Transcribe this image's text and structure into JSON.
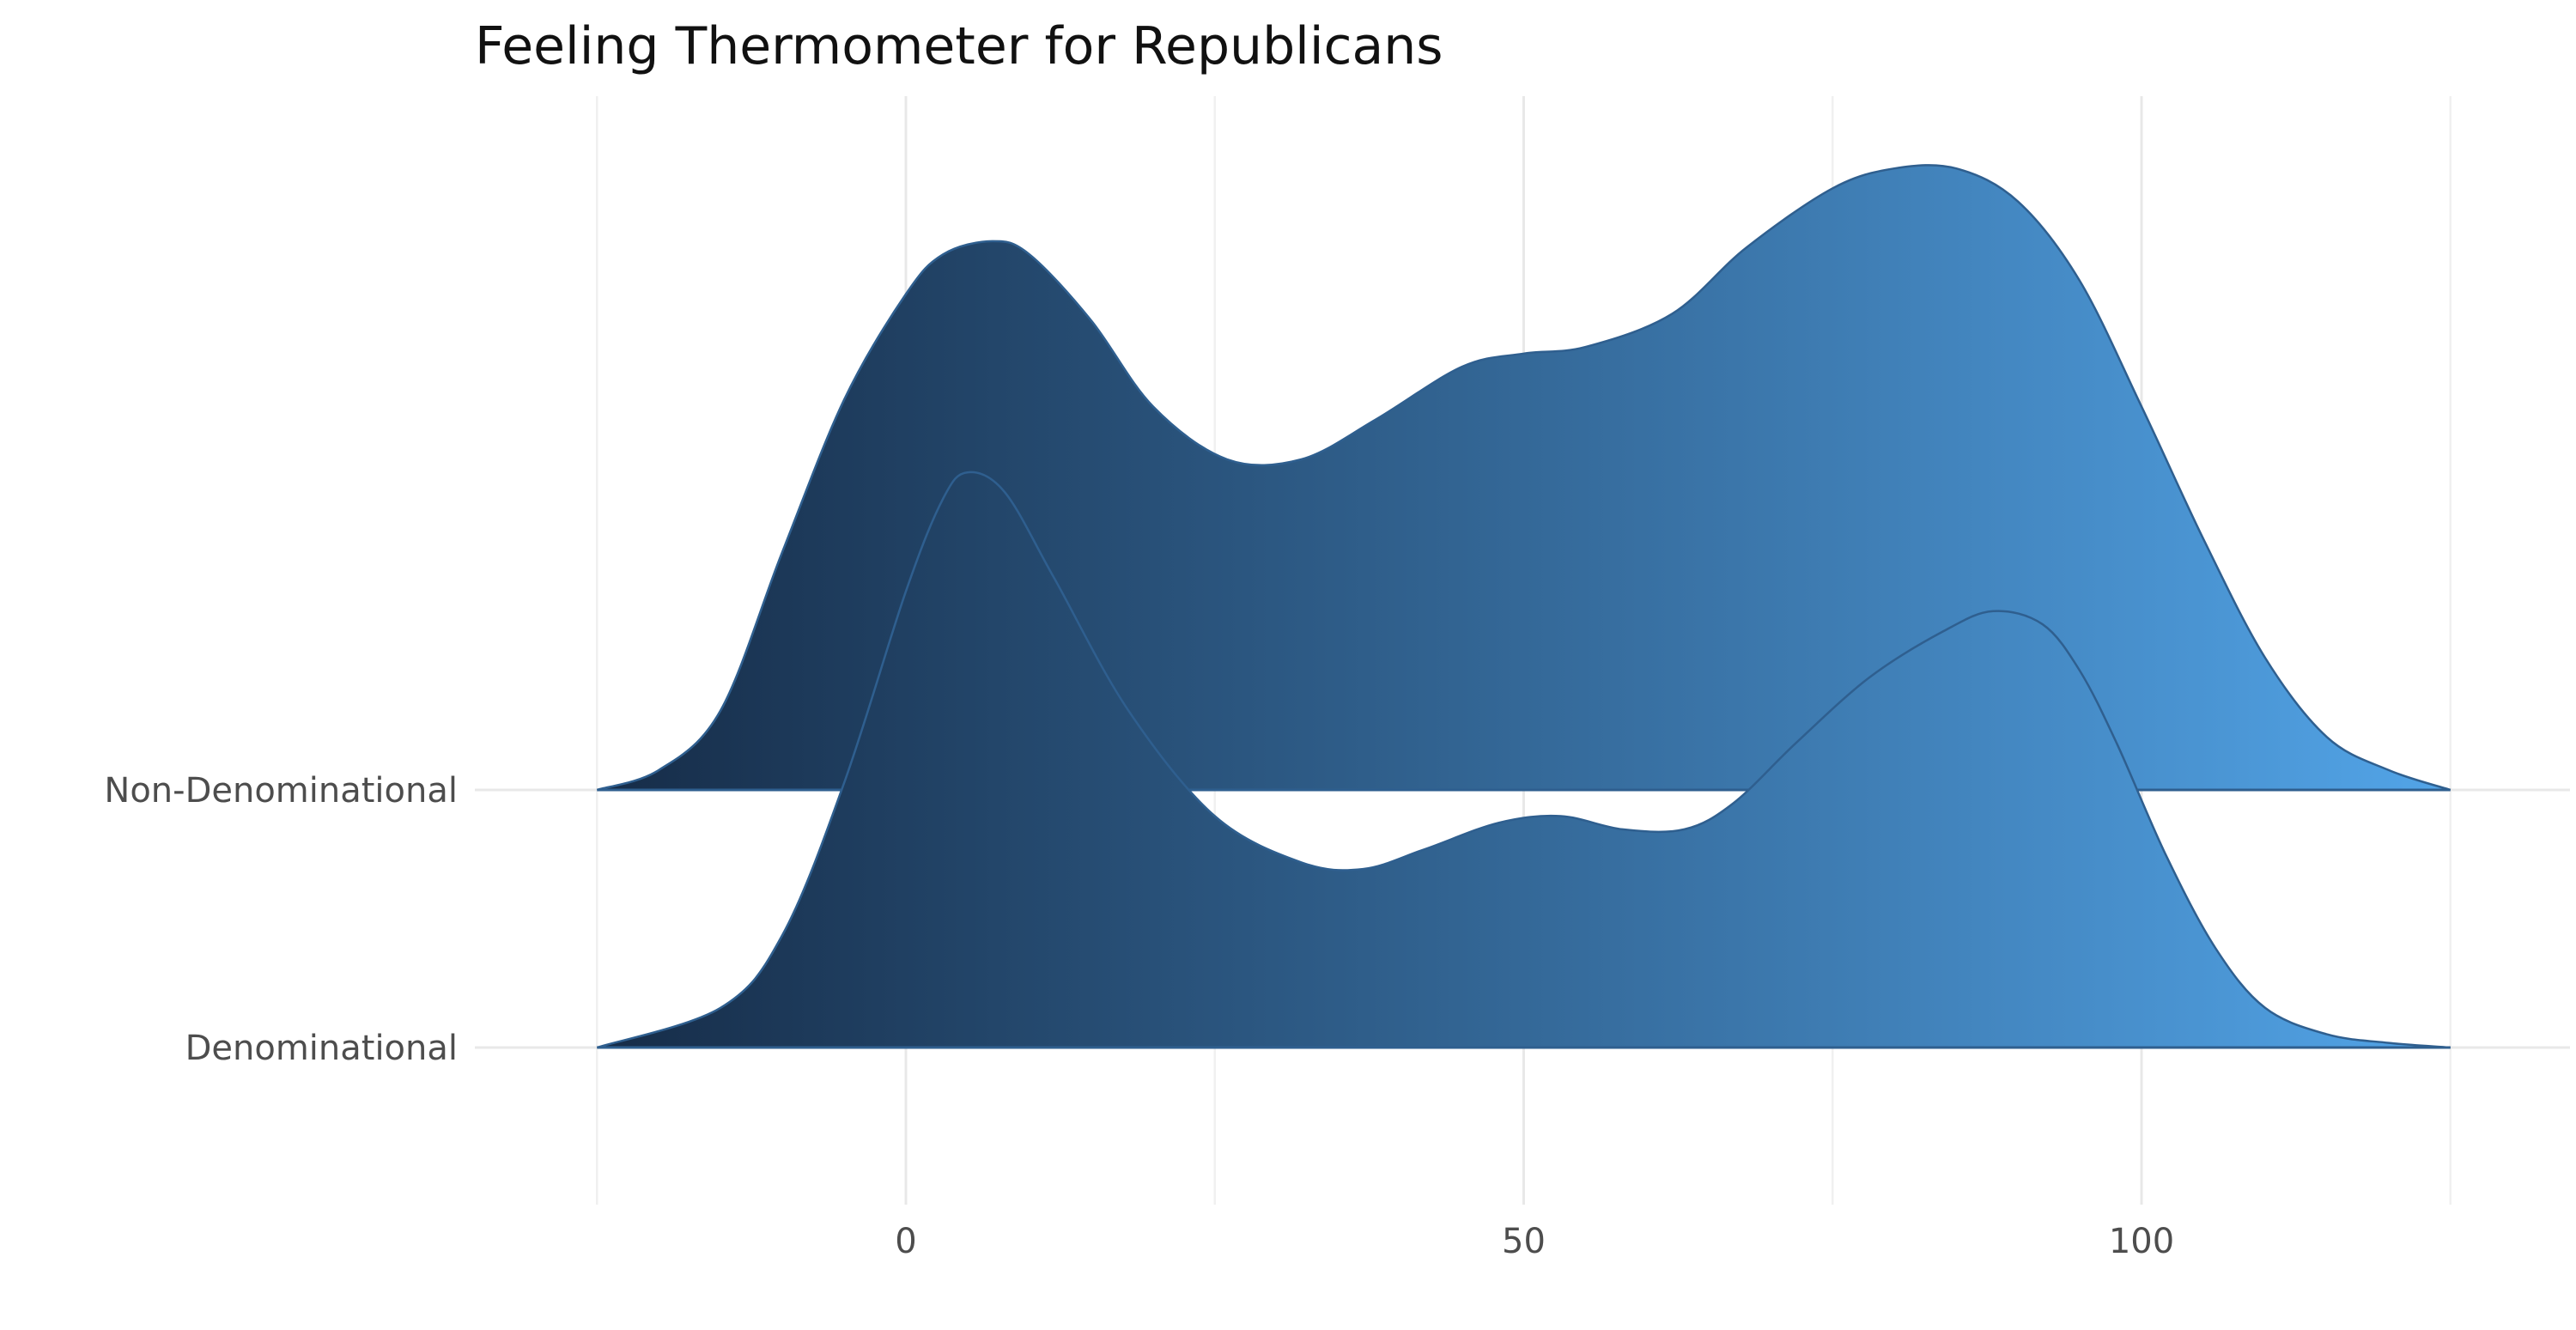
{
  "chart_data": {
    "type": "ridgeline",
    "title": "Feeling Thermometer for Republicans",
    "xlabel": "",
    "ylabel": "",
    "categories": [
      "Denominational",
      "Non-Denominational"
    ],
    "x_ticks": [
      0,
      50,
      100
    ],
    "xlim": [
      -25,
      125
    ],
    "gradient": {
      "from": "#152a45",
      "to": "#53a6ea",
      "outline": "#2f5f8f"
    },
    "grid": true,
    "series": [
      {
        "name": "Denominational",
        "x": [
          -25,
          -15,
          -10,
          -5,
          0,
          3,
          5,
          8,
          12,
          18,
          25,
          32,
          37,
          42,
          48,
          53,
          58,
          63,
          67,
          72,
          78,
          84,
          88,
          92,
          95,
          98,
          102,
          106,
          110,
          115,
          120,
          125
        ],
        "density": [
          0.0,
          0.06,
          0.17,
          0.4,
          0.69,
          0.83,
          0.87,
          0.84,
          0.71,
          0.51,
          0.35,
          0.28,
          0.27,
          0.3,
          0.34,
          0.35,
          0.33,
          0.33,
          0.37,
          0.46,
          0.56,
          0.63,
          0.66,
          0.64,
          0.57,
          0.46,
          0.29,
          0.15,
          0.06,
          0.02,
          0.007,
          0.0
        ]
      },
      {
        "name": "Non-Denominational",
        "x": [
          -25,
          -20,
          -15,
          -10,
          -5,
          0,
          3,
          7,
          10,
          15,
          20,
          26,
          32,
          38,
          45,
          50,
          55,
          62,
          68,
          75,
          80,
          85,
          90,
          95,
          100,
          105,
          110,
          115,
          120,
          125
        ],
        "density": [
          0.0,
          0.03,
          0.12,
          0.36,
          0.59,
          0.75,
          0.81,
          0.83,
          0.81,
          0.71,
          0.58,
          0.5,
          0.5,
          0.56,
          0.64,
          0.66,
          0.67,
          0.72,
          0.82,
          0.91,
          0.94,
          0.94,
          0.89,
          0.77,
          0.58,
          0.38,
          0.2,
          0.08,
          0.03,
          0.0
        ]
      }
    ]
  }
}
